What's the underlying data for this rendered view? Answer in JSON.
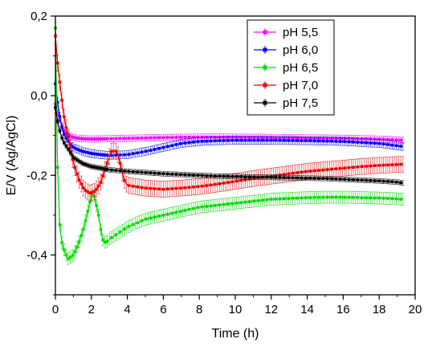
{
  "chart_data": {
    "type": "line",
    "xlabel": "Time (h)",
    "ylabel": "E/V (Ag/AgCl)",
    "xlim": [
      0,
      20
    ],
    "ylim": [
      -0.5,
      0.2
    ],
    "xticks": [
      0,
      2,
      4,
      6,
      8,
      10,
      12,
      14,
      16,
      18,
      20
    ],
    "xtick_labels": [
      "0",
      "2",
      "4",
      "6",
      "8",
      "10",
      "12",
      "14",
      "16",
      "18",
      "20"
    ],
    "yticks": [
      -0.4,
      -0.2,
      0.0,
      0.2
    ],
    "ytick_labels": [
      "-0,4",
      "-0,2",
      "0,0",
      "0,2"
    ],
    "grid": false,
    "legend_position": "top-right",
    "series": [
      {
        "name": "pH 5,5",
        "color": "#ff00ff",
        "x": [
          0,
          0.1,
          0.3,
          0.5,
          0.8,
          1.0,
          1.5,
          2,
          3,
          4,
          5,
          6,
          8,
          10,
          12,
          14,
          16,
          18,
          19.4
        ],
        "y": [
          -0.02,
          -0.04,
          -0.07,
          -0.09,
          -0.1,
          -0.105,
          -0.108,
          -0.109,
          -0.108,
          -0.107,
          -0.106,
          -0.105,
          -0.104,
          -0.104,
          -0.105,
          -0.106,
          -0.107,
          -0.109,
          -0.112
        ],
        "err": 0.008
      },
      {
        "name": "pH 6,0",
        "color": "#0000ff",
        "x": [
          0,
          0.1,
          0.3,
          0.5,
          0.8,
          1.0,
          1.5,
          2,
          2.5,
          3,
          4,
          5,
          6,
          7,
          8,
          9,
          10,
          12,
          14,
          16,
          18,
          19.4
        ],
        "y": [
          0.03,
          -0.01,
          -0.07,
          -0.1,
          -0.12,
          -0.13,
          -0.14,
          -0.145,
          -0.148,
          -0.15,
          -0.148,
          -0.14,
          -0.13,
          -0.12,
          -0.115,
          -0.113,
          -0.112,
          -0.112,
          -0.113,
          -0.115,
          -0.12,
          -0.128
        ],
        "err": 0.01
      },
      {
        "name": "pH 6,5",
        "color": "#00dd00",
        "x": [
          0,
          0.05,
          0.1,
          0.2,
          0.3,
          0.5,
          0.7,
          1.0,
          1.3,
          1.6,
          1.9,
          2.1,
          2.4,
          2.6,
          2.8,
          3.0,
          3.5,
          4,
          5,
          6,
          7,
          8,
          9,
          10,
          11,
          12,
          13,
          14,
          15,
          16,
          17,
          18,
          19,
          19.4
        ],
        "y": [
          0.17,
          0.05,
          -0.15,
          -0.3,
          -0.36,
          -0.39,
          -0.41,
          -0.4,
          -0.37,
          -0.33,
          -0.27,
          -0.24,
          -0.3,
          -0.36,
          -0.37,
          -0.36,
          -0.345,
          -0.33,
          -0.31,
          -0.3,
          -0.29,
          -0.28,
          -0.275,
          -0.27,
          -0.265,
          -0.26,
          -0.258,
          -0.256,
          -0.255,
          -0.255,
          -0.256,
          -0.257,
          -0.259,
          -0.261
        ],
        "err": 0.015
      },
      {
        "name": "pH 7,0",
        "color": "#ee0000",
        "x": [
          0,
          0.1,
          0.3,
          0.5,
          0.8,
          1.0,
          1.3,
          1.6,
          1.9,
          2.2,
          2.5,
          2.8,
          3.1,
          3.3,
          3.5,
          3.8,
          4,
          5,
          6,
          7,
          8,
          9,
          10,
          11,
          12,
          13,
          14,
          15,
          16,
          17,
          18,
          19.4
        ],
        "y": [
          0.15,
          0.09,
          0.01,
          -0.06,
          -0.12,
          -0.17,
          -0.21,
          -0.235,
          -0.245,
          -0.24,
          -0.22,
          -0.18,
          -0.14,
          -0.135,
          -0.15,
          -0.21,
          -0.225,
          -0.232,
          -0.235,
          -0.232,
          -0.228,
          -0.222,
          -0.215,
          -0.208,
          -0.202,
          -0.196,
          -0.19,
          -0.186,
          -0.182,
          -0.178,
          -0.175,
          -0.172
        ],
        "err": 0.02
      },
      {
        "name": "pH 7,5",
        "color": "#000000",
        "x": [
          0,
          0.1,
          0.3,
          0.5,
          0.8,
          1.0,
          1.5,
          2,
          3,
          4,
          5,
          6,
          7,
          8,
          9,
          10,
          11,
          12,
          13,
          14,
          15,
          16,
          17,
          18,
          19,
          19.4
        ],
        "y": [
          -0.03,
          -0.06,
          -0.1,
          -0.12,
          -0.14,
          -0.155,
          -0.17,
          -0.178,
          -0.186,
          -0.19,
          -0.193,
          -0.196,
          -0.198,
          -0.2,
          -0.202,
          -0.203,
          -0.204,
          -0.205,
          -0.206,
          -0.207,
          -0.208,
          -0.21,
          -0.212,
          -0.214,
          -0.217,
          -0.22
        ],
        "err": 0.006
      }
    ]
  }
}
